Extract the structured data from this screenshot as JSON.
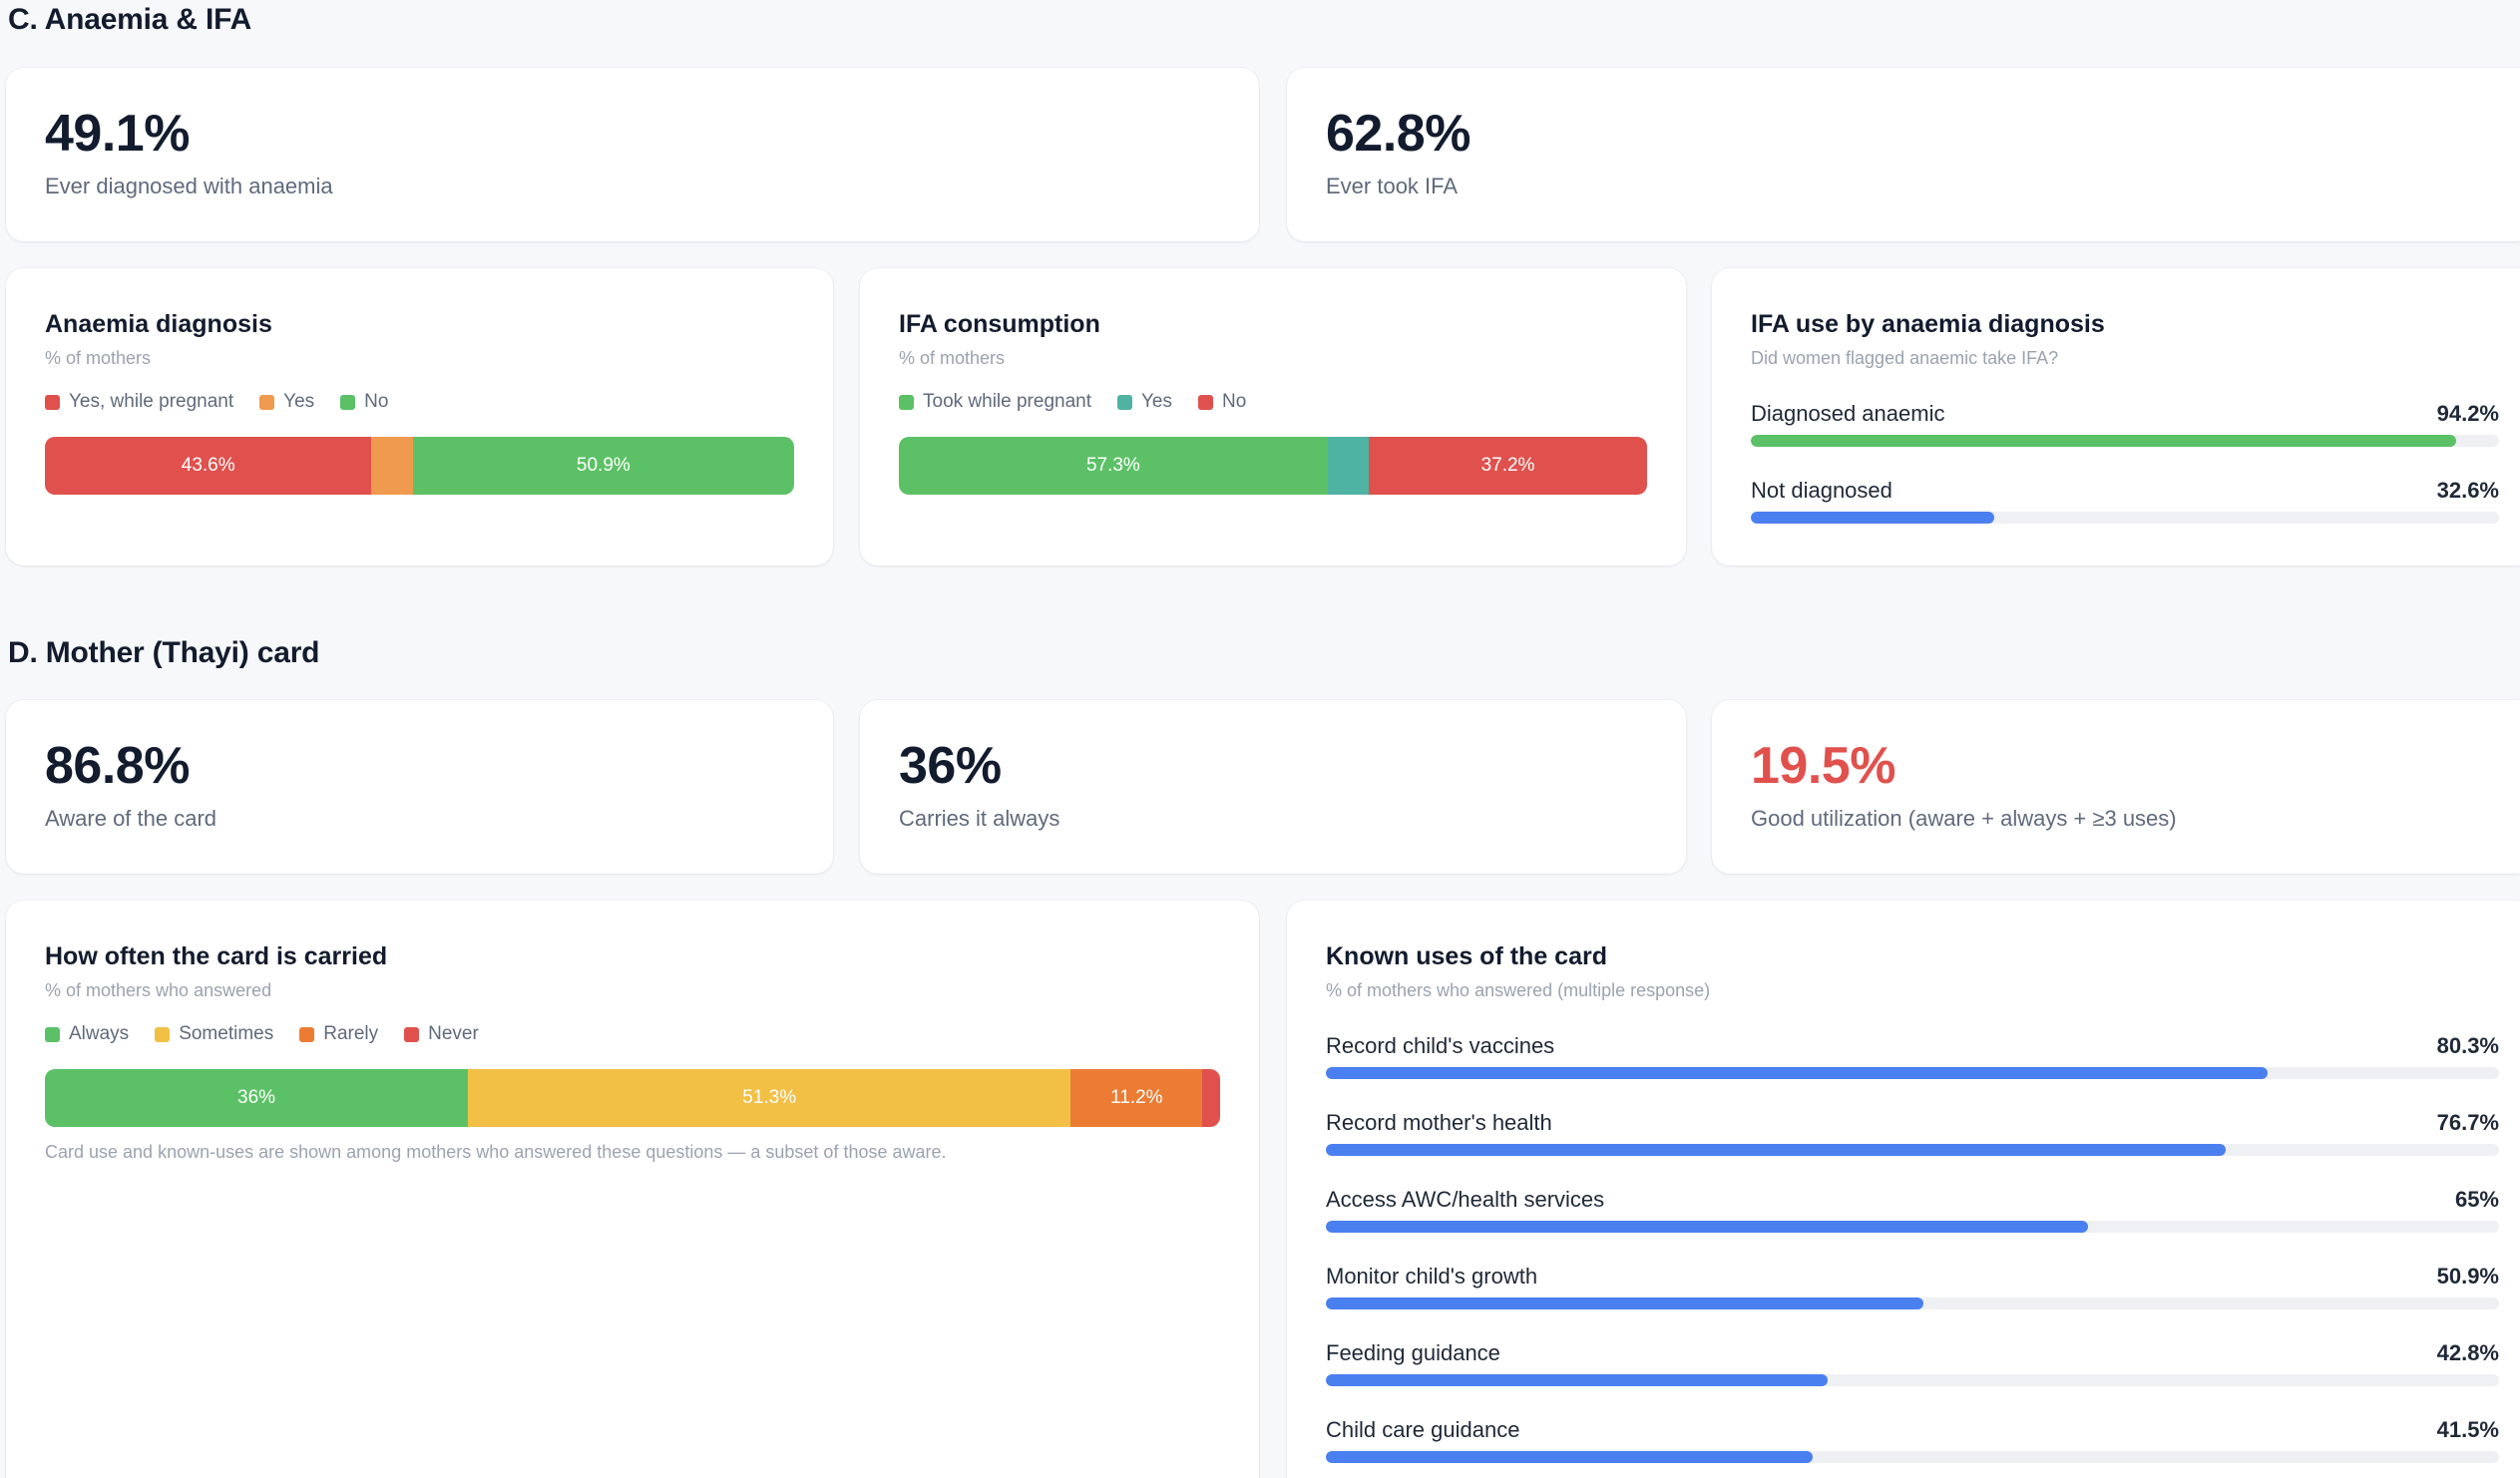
{
  "section_c": {
    "title": "C. Anaemia & IFA",
    "kpis": [
      {
        "value": "49.1%",
        "label": "Ever diagnosed with anaemia"
      },
      {
        "value": "62.8%",
        "label": "Ever took IFA"
      }
    ],
    "anaemia_diagnosis": {
      "title": "Anaemia diagnosis",
      "subtitle": "% of mothers",
      "legend": [
        {
          "label": "Yes, while pregnant",
          "color": "#e0514d"
        },
        {
          "label": "Yes",
          "color": "#ef9a4e"
        },
        {
          "label": "No",
          "color": "#5cc166"
        }
      ],
      "segments": [
        {
          "value": 43.6,
          "text": "43.6%",
          "color": "#e0514d"
        },
        {
          "value": 5.5,
          "text": "",
          "color": "#ef9a4e"
        },
        {
          "value": 50.9,
          "text": "50.9%",
          "color": "#5cc166"
        }
      ]
    },
    "ifa_consumption": {
      "title": "IFA consumption",
      "subtitle": "% of mothers",
      "legend": [
        {
          "label": "Took while pregnant",
          "color": "#5cc166"
        },
        {
          "label": "Yes",
          "color": "#4fb3a4"
        },
        {
          "label": "No",
          "color": "#e0514d"
        }
      ],
      "segments": [
        {
          "value": 57.3,
          "text": "57.3%",
          "color": "#5cc166"
        },
        {
          "value": 5.5,
          "text": "",
          "color": "#4fb3a4"
        },
        {
          "value": 37.2,
          "text": "37.2%",
          "color": "#e0514d"
        }
      ]
    },
    "ifa_by_anaemia": {
      "title": "IFA use by anaemia diagnosis",
      "subtitle": "Did women flagged anaemic take IFA?",
      "rows": [
        {
          "label": "Diagnosed anaemic",
          "pct": "94.2%",
          "value": 94.2,
          "color": "#5cc166"
        },
        {
          "label": "Not diagnosed",
          "pct": "32.6%",
          "value": 32.6,
          "color": "#4a7ff0"
        }
      ]
    }
  },
  "section_d": {
    "title": "D. Mother (Thayi) card",
    "kpis": [
      {
        "value": "86.8%",
        "label": "Aware of the card",
        "color": "#131c2e"
      },
      {
        "value": "36%",
        "label": "Carries it always",
        "color": "#131c2e"
      },
      {
        "value": "19.5%",
        "label": "Good utilization (aware + always + ≥3 uses)",
        "color": "#e0514d"
      }
    ],
    "carried": {
      "title": "How often the card is carried",
      "subtitle": "% of mothers who answered",
      "legend": [
        {
          "label": "Always",
          "color": "#5cc166"
        },
        {
          "label": "Sometimes",
          "color": "#f2c045"
        },
        {
          "label": "Rarely",
          "color": "#ec7c34"
        },
        {
          "label": "Never",
          "color": "#e0514d"
        }
      ],
      "segments": [
        {
          "value": 36,
          "text": "36%",
          "color": "#5cc166"
        },
        {
          "value": 51.3,
          "text": "51.3%",
          "color": "#f2c045"
        },
        {
          "value": 11.2,
          "text": "11.2%",
          "color": "#ec7c34"
        },
        {
          "value": 1.5,
          "text": "",
          "color": "#e0514d"
        }
      ],
      "note": "Card use and known-uses are shown among mothers who answered these questions — a subset of those aware."
    },
    "known_uses": {
      "title": "Known uses of the card",
      "subtitle": "% of mothers who answered (multiple response)",
      "rows": [
        {
          "label": "Record child's vaccines",
          "pct": "80.3%",
          "value": 80.3
        },
        {
          "label": "Record mother's health",
          "pct": "76.7%",
          "value": 76.7
        },
        {
          "label": "Access AWC/health services",
          "pct": "65%",
          "value": 65
        },
        {
          "label": "Monitor child's growth",
          "pct": "50.9%",
          "value": 50.9
        },
        {
          "label": "Feeding guidance",
          "pct": "42.8%",
          "value": 42.8
        },
        {
          "label": "Child care guidance",
          "pct": "41.5%",
          "value": 41.5
        }
      ],
      "bar_color": "#4a7ff0"
    }
  }
}
